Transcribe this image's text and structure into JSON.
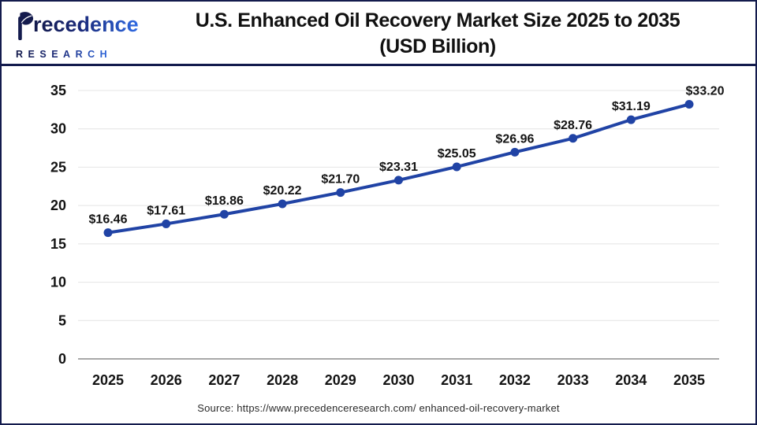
{
  "header": {
    "logo": {
      "name": "recedence",
      "full_name": "Precedence",
      "subname": "RESEARCH"
    },
    "title_line1": "U.S. Enhanced Oil Recovery Market Size 2025 to 2035",
    "title_line2": "(USD Billion)"
  },
  "chart_data": {
    "type": "line",
    "title": "U.S. Enhanced Oil Recovery Market Size 2025 to 2035 (USD Billion)",
    "categories": [
      "2025",
      "2026",
      "2027",
      "2028",
      "2029",
      "2030",
      "2031",
      "2032",
      "2033",
      "2034",
      "2035"
    ],
    "series": [
      {
        "name": "U.S. Enhanced Oil Recovery Market Size (USD Billion)",
        "values": [
          16.46,
          17.61,
          18.86,
          20.22,
          21.7,
          23.31,
          25.05,
          26.96,
          28.76,
          31.19,
          33.2
        ],
        "labels": [
          "$16.46",
          "$17.61",
          "$18.86",
          "$20.22",
          "$21.70",
          "$23.31",
          "$25.05",
          "$26.96",
          "$28.76",
          "$31.19",
          "$33.20"
        ]
      }
    ],
    "xlabel": "",
    "ylabel": "",
    "ylim": [
      0,
      35
    ],
    "ytick_step": 5,
    "grid": true,
    "legend": false,
    "line_color": "#2043a5",
    "marker_color": "#2043a5"
  },
  "footer": {
    "source": "Source: https://www.precedenceresearch.com/ enhanced-oil-recovery-market"
  },
  "colors": {
    "border_navy": "#131b4d",
    "grid_line": "#e4e4e4",
    "zero_axis": "#a8a8a8",
    "label_text": "#141414"
  }
}
